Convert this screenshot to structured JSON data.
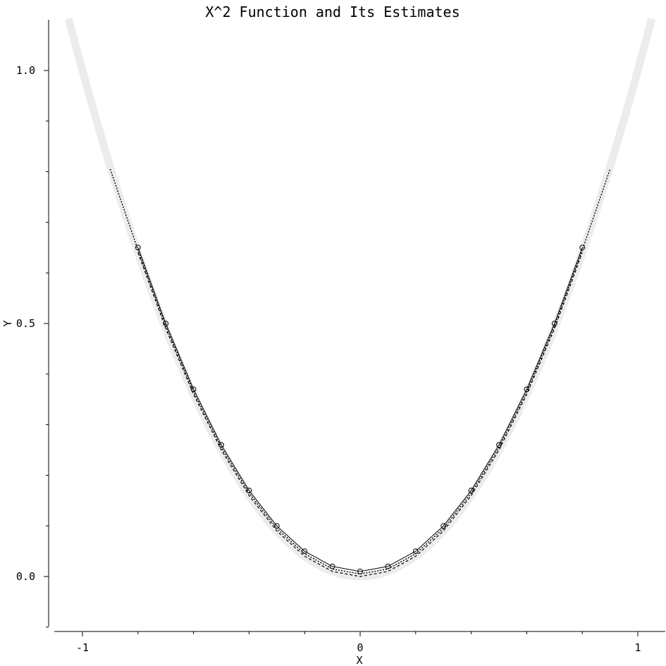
{
  "chart_data": {
    "type": "line",
    "title": "X^2 Function and Its Estimates",
    "xlabel": "X",
    "ylabel": "Y",
    "xlim": [
      -1.1,
      1.1
    ],
    "ylim": [
      -0.1,
      1.1
    ],
    "x_ticks": [
      -1,
      0,
      1
    ],
    "x_tick_labels": [
      "-1",
      "0",
      "1"
    ],
    "x_minor_ticks": [
      -0.8,
      -0.6,
      -0.4,
      -0.2,
      0.2,
      0.4,
      0.6,
      0.8
    ],
    "y_ticks": [
      0.0,
      0.5,
      1.0
    ],
    "y_tick_labels": [
      "0.0",
      "0.5",
      "1.0"
    ],
    "y_minor_ticks": [
      -0.1,
      0.1,
      0.2,
      0.3,
      0.4,
      0.6,
      0.7,
      0.8,
      0.9
    ],
    "grid": false,
    "legend": "none",
    "series": [
      {
        "style": "thick-light-gray",
        "color": "#ececec",
        "function": "x^2",
        "x": [
          -1.05,
          -0.95,
          -0.85,
          -0.75,
          -0.65,
          -0.55,
          -0.45,
          -0.35,
          -0.25,
          -0.15,
          -0.05,
          0.05,
          0.15,
          0.25,
          0.35,
          0.45,
          0.55,
          0.65,
          0.75,
          0.85,
          0.95,
          1.05
        ],
        "y": [
          1.1025,
          0.9025,
          0.7225,
          0.5625,
          0.4225,
          0.3025,
          0.2025,
          0.1225,
          0.0625,
          0.0225,
          0.0025,
          0.0025,
          0.0225,
          0.0625,
          0.1225,
          0.2025,
          0.3025,
          0.4225,
          0.5625,
          0.7225,
          0.9025,
          1.1025
        ]
      },
      {
        "style": "dotted",
        "color": "#000000",
        "x": [
          -0.9,
          -0.8,
          -0.7,
          -0.6,
          -0.5,
          -0.4,
          -0.3,
          -0.2,
          -0.1,
          0.0,
          0.1,
          0.2,
          0.3,
          0.4,
          0.5,
          0.6,
          0.7,
          0.8,
          0.9
        ],
        "y": [
          0.805,
          0.645,
          0.495,
          0.365,
          0.255,
          0.165,
          0.095,
          0.045,
          0.015,
          0.005,
          0.015,
          0.045,
          0.095,
          0.165,
          0.255,
          0.365,
          0.495,
          0.645,
          0.805
        ]
      },
      {
        "style": "dashed",
        "color": "#000000",
        "x": [
          -0.8,
          -0.7,
          -0.6,
          -0.5,
          -0.4,
          -0.3,
          -0.2,
          -0.1,
          0.0,
          0.1,
          0.2,
          0.3,
          0.4,
          0.5,
          0.6,
          0.7,
          0.8
        ],
        "y": [
          0.64,
          0.49,
          0.36,
          0.25,
          0.16,
          0.09,
          0.04,
          0.01,
          0.0,
          0.01,
          0.04,
          0.09,
          0.16,
          0.25,
          0.36,
          0.49,
          0.64
        ]
      },
      {
        "style": "solid-thin",
        "color": "#000000",
        "x": [
          -0.8,
          -0.7,
          -0.6,
          -0.5,
          -0.4,
          -0.3,
          -0.2,
          -0.1,
          0.0,
          0.1,
          0.2,
          0.3,
          0.4,
          0.5,
          0.6,
          0.7,
          0.8
        ],
        "y": [
          0.65,
          0.5,
          0.37,
          0.26,
          0.17,
          0.1,
          0.05,
          0.02,
          0.01,
          0.02,
          0.05,
          0.1,
          0.17,
          0.26,
          0.37,
          0.5,
          0.65
        ]
      }
    ],
    "markers": {
      "shape": "open-circle",
      "x": [
        -0.8,
        -0.7,
        -0.6,
        -0.5,
        -0.4,
        -0.3,
        -0.2,
        -0.1,
        0.0,
        0.1,
        0.2,
        0.3,
        0.4,
        0.5,
        0.6,
        0.7,
        0.8
      ],
      "y": [
        0.65,
        0.5,
        0.37,
        0.26,
        0.17,
        0.1,
        0.05,
        0.02,
        0.01,
        0.02,
        0.05,
        0.1,
        0.17,
        0.26,
        0.37,
        0.5,
        0.65
      ]
    }
  }
}
